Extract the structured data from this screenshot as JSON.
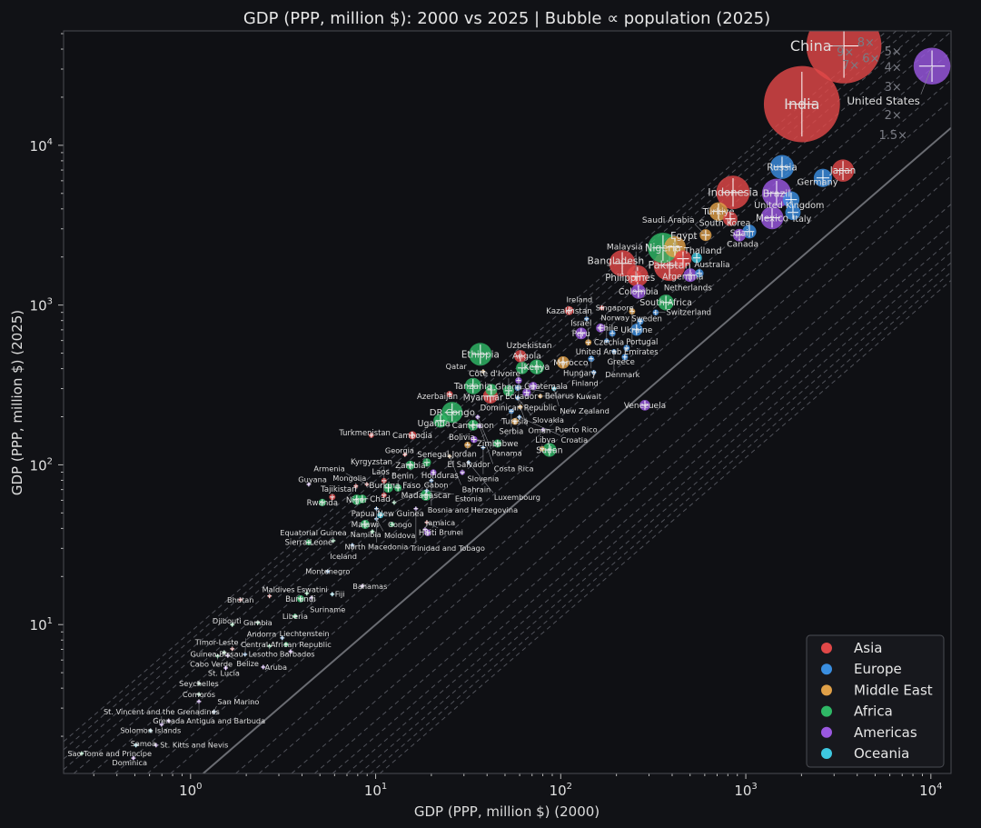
{
  "chart_data": {
    "type": "scatter",
    "title": "GDP (PPP, million $): 2000 vs 2025  |  Bubble ∝ population (2025)",
    "xlabel": "GDP (PPP, million $) (2000)",
    "ylabel": "GDP (PPP, million $) (2025)",
    "xscale": "log",
    "yscale": "log",
    "xlim": [
      0.206,
      12850
    ],
    "ylim": [
      1.17,
      52000
    ],
    "x_ticks": [
      {
        "base": "10",
        "exp": "0",
        "value": 1
      },
      {
        "base": "10",
        "exp": "1",
        "value": 10
      },
      {
        "base": "10",
        "exp": "2",
        "value": 100
      },
      {
        "base": "10",
        "exp": "3",
        "value": 1000
      },
      {
        "base": "10",
        "exp": "4",
        "value": 10000
      }
    ],
    "y_ticks": [
      {
        "base": "10",
        "exp": "1",
        "value": 10
      },
      {
        "base": "10",
        "exp": "2",
        "value": 100
      },
      {
        "base": "10",
        "exp": "3",
        "value": 1000
      },
      {
        "base": "10",
        "exp": "4",
        "value": 10000
      }
    ],
    "grid": false,
    "legend_position": "bottom-right",
    "reference_lines": {
      "identity": 1,
      "labeled_multiples": [
        {
          "k": 1.5,
          "label": "1.5×"
        },
        {
          "k": 2,
          "label": "2×"
        },
        {
          "k": 3,
          "label": "3×"
        },
        {
          "k": 4,
          "label": "4×"
        },
        {
          "k": 5,
          "label": "5×"
        },
        {
          "k": 6,
          "label": "6×"
        },
        {
          "k": 7,
          "label": "7×"
        },
        {
          "k": 8,
          "label": "8×"
        },
        {
          "k": 9,
          "label": "9×"
        }
      ],
      "unlabeled_multiples": [
        0.667,
        0.5,
        0.333,
        0.25,
        0.2,
        0.167,
        0.143,
        0.125,
        0.111
      ]
    },
    "regions": [
      {
        "name": "Asia",
        "color": "#e04848"
      },
      {
        "name": "Europe",
        "color": "#3a8ee0"
      },
      {
        "name": "Middle East",
        "color": "#e0a048"
      },
      {
        "name": "Africa",
        "color": "#2fb866"
      },
      {
        "name": "Americas",
        "color": "#9a58e0"
      },
      {
        "name": "Oceania",
        "color": "#3ec8e0"
      }
    ],
    "point_fields": [
      "country",
      "region",
      "gdp_2000",
      "gdp_2025",
      "population_millions"
    ],
    "points": [
      [
        "China",
        "Asia",
        3390,
        41900,
        1410
      ],
      [
        "India",
        "Asia",
        2010,
        18100,
        1450
      ],
      [
        "United States",
        "Americas",
        10140,
        31300,
        340
      ],
      [
        "Japan",
        "Asia",
        3350,
        6950,
        124
      ],
      [
        "Germany",
        "Europe",
        2610,
        6250,
        84
      ],
      [
        "Russia",
        "Europe",
        1570,
        7320,
        144
      ],
      [
        "Indonesia",
        "Asia",
        853,
        5070,
        280
      ],
      [
        "Brazil",
        "Americas",
        1467,
        5010,
        212
      ],
      [
        "United Kingdom",
        "Europe",
        1758,
        4570,
        69
      ],
      [
        "Italy",
        "Europe",
        1798,
        3800,
        59
      ],
      [
        "Mexico",
        "Americas",
        1387,
        3515,
        130
      ],
      [
        "Türkiye",
        "Middle East",
        712,
        3853,
        86
      ],
      [
        "South Korea",
        "Asia",
        824,
        3467,
        52
      ],
      [
        "Saudi Arabia",
        "Middle East",
        607,
        2740,
        35
      ],
      [
        "Canada",
        "Americas",
        923,
        2740,
        40
      ],
      [
        "Spain",
        "Europe",
        1045,
        2886,
        48
      ],
      [
        "Nigeria",
        "Africa",
        357,
        2280,
        230
      ],
      [
        "Egypt",
        "Middle East",
        414,
        2312,
        115
      ],
      [
        "Bangladesh",
        "Asia",
        215,
        1825,
        173
      ],
      [
        "Pakistan",
        "Asia",
        387,
        1778,
        250
      ],
      [
        "Thailand",
        "Asia",
        458,
        1950,
        72
      ],
      [
        "Australia",
        "Oceania",
        543,
        1973,
        27
      ],
      [
        "Argentina",
        "Americas",
        501,
        1539,
        46
      ],
      [
        "Netherlands",
        "Europe",
        561,
        1580,
        18
      ],
      [
        "Philippines",
        "Asia",
        260,
        1520,
        116
      ],
      [
        "Malaysia",
        "Asia",
        255,
        1510,
        35
      ],
      [
        "Colombia",
        "Americas",
        263,
        1216,
        53
      ],
      [
        "South Africa",
        "Africa",
        370,
        1038,
        63
      ],
      [
        "United Arab Emirates",
        "Middle East",
        243,
        912,
        10
      ],
      [
        "Switzerland",
        "Europe",
        326,
        899,
        9
      ],
      [
        "Kazakhstan",
        "Asia",
        111,
        923,
        20
      ],
      [
        "Singapore",
        "Asia",
        167,
        960,
        6
      ],
      [
        "Ireland",
        "Europe",
        138,
        820,
        5
      ],
      [
        "Chile",
        "Americas",
        164,
        719,
        20
      ],
      [
        "Peru",
        "Americas",
        129,
        665,
        34
      ],
      [
        "Czechia",
        "Europe",
        190,
        665,
        11
      ],
      [
        "Sweden",
        "Europe",
        269,
        789,
        11
      ],
      [
        "Ukraine",
        "Europe",
        257,
        701,
        37
      ],
      [
        "Israel",
        "Middle East",
        141,
        584,
        10
      ],
      [
        "Norway",
        "Europe",
        177,
        599,
        5.5
      ],
      [
        "Portugal",
        "Europe",
        227,
        539,
        10
      ],
      [
        "Denmark",
        "Europe",
        194,
        512,
        6
      ],
      [
        "Greece",
        "Europe",
        222,
        473,
        10
      ],
      [
        "Hungary",
        "Europe",
        146,
        461,
        9.6
      ],
      [
        "Morocco",
        "Middle East",
        103,
        437,
        38
      ],
      [
        "Finland",
        "Europe",
        151,
        379,
        5.6
      ],
      [
        "Venezuela",
        "Americas",
        285,
        236,
        28
      ],
      [
        "Ethiopia",
        "Africa",
        36.8,
        492,
        130
      ],
      [
        "Uzbekistan",
        "Asia",
        60.5,
        479,
        37
      ],
      [
        "Angola",
        "Africa",
        61.9,
        404,
        38
      ],
      [
        "Kenya",
        "Africa",
        74.2,
        410,
        56
      ],
      [
        "Qatar",
        "Middle East",
        38.1,
        384,
        3
      ],
      [
        "Dominican Republic",
        "Americas",
        59.2,
        337,
        11
      ],
      [
        "Belarus",
        "Europe",
        58.5,
        303,
        9
      ],
      [
        "Guatemala",
        "Americas",
        71,
        311,
        18
      ],
      [
        "New Zealand",
        "Oceania",
        92,
        299,
        5
      ],
      [
        "Ecuador",
        "Americas",
        65.5,
        284,
        18
      ],
      [
        "Kuwait",
        "Middle East",
        77.6,
        269,
        4.9
      ],
      [
        "Tanzania",
        "Africa",
        33.6,
        311,
        68
      ],
      [
        "Ghana",
        "Africa",
        42.2,
        295,
        34
      ],
      [
        "Myanmar",
        "Asia",
        41.7,
        269,
        55
      ],
      [
        "Côte d'Ivoire",
        "Africa",
        52.3,
        291,
        31
      ],
      [
        "Azerbaijan",
        "Asia",
        25.1,
        277,
        10
      ],
      [
        "Slovakia",
        "Europe",
        58.5,
        262,
        5.4
      ],
      [
        "Oman",
        "Middle East",
        60.5,
        230,
        5
      ],
      [
        "DR Congo",
        "Africa",
        25.9,
        213,
        110
      ],
      [
        "Uganda",
        "Africa",
        22.4,
        189,
        49
      ],
      [
        "Serbia",
        "Europe",
        54.1,
        216,
        6.6
      ],
      [
        "Croatia",
        "Europe",
        59.8,
        199,
        3.9
      ],
      [
        "Tunisia",
        "Middle East",
        56.6,
        187,
        12
      ],
      [
        "Panama",
        "Americas",
        35.6,
        199,
        4.5
      ],
      [
        "Cameroon",
        "Africa",
        33.6,
        177,
        29
      ],
      [
        "Costa Rica",
        "Americas",
        36.4,
        175,
        5
      ],
      [
        "Puerto Rico",
        "Americas",
        80.3,
        166,
        3.2
      ],
      [
        "Turkmenistan",
        "Asia",
        9.48,
        153,
        6.5
      ],
      [
        "Cambodia",
        "Asia",
        15.8,
        153,
        17
      ],
      [
        "Bolivia",
        "Americas",
        34,
        144,
        12
      ],
      [
        "Zimbabwe",
        "Africa",
        45.6,
        136,
        17
      ],
      [
        "Jordan",
        "Middle East",
        31.4,
        133,
        11
      ],
      [
        "Slovenia",
        "Europe",
        38.1,
        128,
        2.1
      ],
      [
        "Libya",
        "Middle East",
        79.4,
        126,
        7
      ],
      [
        "Sudan",
        "Africa",
        86.9,
        124,
        48
      ],
      [
        "Georgia",
        "Asia",
        14.4,
        116,
        3.7
      ],
      [
        "Bahrain",
        "Middle East",
        25.1,
        113,
        1.6
      ],
      [
        "Senegal",
        "Africa",
        18.9,
        103.5,
        18
      ],
      [
        "Luxembourg",
        "Europe",
        31.8,
        103.5,
        0.7
      ],
      [
        "Zambia",
        "Africa",
        15.4,
        99.5,
        21
      ],
      [
        "Honduras",
        "Americas",
        20.5,
        89.6,
        10
      ],
      [
        "El Salvador",
        "Americas",
        29.4,
        89.6,
        6.3
      ],
      [
        "Bosnia and Herzegovina",
        "Europe",
        20,
        79.6,
        3.2
      ],
      [
        "Guyana",
        "Americas",
        4.35,
        75.5,
        0.8
      ],
      [
        "Mongolia",
        "Asia",
        7.82,
        73.6,
        3.5
      ],
      [
        "Armenia",
        "Asia",
        8.96,
        75.5,
        3
      ],
      [
        "Burkina Faso",
        "Africa",
        11.7,
        71.7,
        23
      ],
      [
        "Benin",
        "Africa",
        13.2,
        71.7,
        14
      ],
      [
        "Laos",
        "Asia",
        11.1,
        79.6,
        7.6
      ],
      [
        "Tajikistan",
        "Asia",
        5.83,
        62.9,
        10
      ],
      [
        "Niger",
        "Africa",
        7.91,
        60.5,
        27
      ],
      [
        "Rwanda",
        "Africa",
        5.15,
        58.1,
        14
      ],
      [
        "Kyrgyzstan",
        "Asia",
        11.1,
        64.6,
        7
      ],
      [
        "Chad",
        "Africa",
        8.47,
        61.2,
        19
      ],
      [
        "Madagascar",
        "Africa",
        18.7,
        64.6,
        31
      ],
      [
        "Estonia",
        "Europe",
        18.9,
        68.9,
        1.4
      ],
      [
        "Gabon",
        "Africa",
        12.6,
        58.1,
        2.5
      ],
      [
        "North Macedonia",
        "Europe",
        10.1,
        53.1,
        1.8
      ],
      [
        "Trinidad and Tobago",
        "Americas",
        16.5,
        53.1,
        1.5
      ],
      [
        "Papua New Guinea",
        "Oceania",
        10.6,
        48.4,
        10
      ],
      [
        "Moldova",
        "Europe",
        10.1,
        45.9,
        2.5
      ],
      [
        "Malawi",
        "Africa",
        8.77,
        42.4,
        21
      ],
      [
        "Congo",
        "Africa",
        12.3,
        42.4,
        6
      ],
      [
        "Namibia",
        "Africa",
        9.6,
        38.2,
        3
      ],
      [
        "Brunei",
        "Asia",
        18.9,
        43.6,
        0.45
      ],
      [
        "Jamaica",
        "Americas",
        18.5,
        39.5,
        2.8
      ],
      [
        "Haiti",
        "Americas",
        19.1,
        37.6,
        11.8
      ],
      [
        "Sierra Leone",
        "Africa",
        4.35,
        32.7,
        8.6
      ],
      [
        "Equatorial Guinea",
        "Africa",
        5.9,
        33.5,
        1.7
      ],
      [
        "Iceland",
        "Europe",
        7.48,
        31.4,
        0.4
      ],
      [
        "Montenegro",
        "Europe",
        5.51,
        21.5,
        0.6
      ],
      [
        "Bahamas",
        "Americas",
        8.47,
        17.4,
        0.4
      ],
      [
        "Eswatini",
        "Africa",
        4.25,
        15.7,
        1.2
      ],
      [
        "Fiji",
        "Oceania",
        5.83,
        15.5,
        0.9
      ],
      [
        "Suriname",
        "Americas",
        4.5,
        14.7,
        0.6
      ],
      [
        "Burundi",
        "Africa",
        3.93,
        14.5,
        13
      ],
      [
        "Maldives",
        "Asia",
        2.67,
        15.1,
        0.5
      ],
      [
        "Bhutan",
        "Asia",
        1.86,
        14.3,
        0.8
      ],
      [
        "Liberia",
        "Africa",
        3.67,
        11.3,
        5.5
      ],
      [
        "Gambia",
        "Africa",
        2.31,
        10.3,
        2.7
      ],
      [
        "Djibouti",
        "Africa",
        1.68,
        10.0,
        1.1
      ],
      [
        "Liechtenstein",
        "Europe",
        3.13,
        8.25,
        0.04
      ],
      [
        "Central African Republic",
        "Africa",
        3.28,
        7.52,
        5.8
      ],
      [
        "Lesotho",
        "Africa",
        2.67,
        7.33,
        2.3
      ],
      [
        "Barbados",
        "Americas",
        3.47,
        6.78,
        0.28
      ],
      [
        "Timor-Leste",
        "Asia",
        1.68,
        7.05,
        1.4
      ],
      [
        "Guinea-Bissau",
        "Africa",
        1.52,
        6.69,
        2.2
      ],
      [
        "Andorra",
        "Europe",
        1.97,
        6.51,
        0.08
      ],
      [
        "Cabo Verde",
        "Africa",
        1.4,
        6.35,
        0.5
      ],
      [
        "Belize",
        "Americas",
        1.59,
        6.4,
        0.4
      ],
      [
        "St. Lucia",
        "Americas",
        1.55,
        5.35,
        0.18
      ],
      [
        "Aruba",
        "Americas",
        2.47,
        5.42,
        0.1
      ],
      [
        "Seychelles",
        "Africa",
        1.11,
        4.28,
        0.1
      ],
      [
        "Comoros",
        "Africa",
        1.11,
        3.66,
        0.85
      ],
      [
        "Antigua and Barbuda",
        "Americas",
        1.11,
        3.3,
        0.09
      ],
      [
        "San Marino",
        "Europe",
        1.34,
        2.85,
        0.03
      ],
      [
        "Grenada",
        "Americas",
        0.762,
        2.5,
        0.12
      ],
      [
        "St. Vincent and the Grenadines",
        "Americas",
        0.697,
        2.37,
        0.1
      ],
      [
        "Solomon Islands",
        "Oceania",
        0.608,
        2.17,
        0.75
      ],
      [
        "St. Kitts and Nevis",
        "Americas",
        0.651,
        1.76,
        0.05
      ],
      [
        "Samoa",
        "Oceania",
        0.507,
        1.76,
        0.22
      ],
      [
        "Sao Tome and Principe",
        "Africa",
        0.258,
        1.56,
        0.23
      ],
      [
        "Dominica",
        "Americas",
        0.491,
        1.46,
        0.07
      ]
    ]
  }
}
